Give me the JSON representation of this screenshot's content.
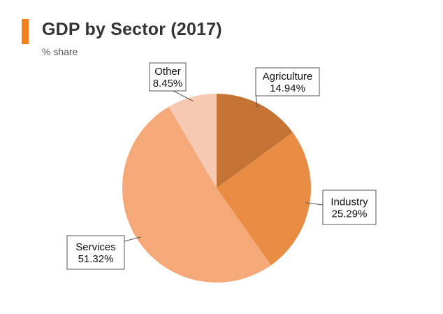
{
  "header": {
    "title": "GDP by Sector (2017)",
    "subtitle": "% share",
    "accent_color": "#f07f1c"
  },
  "chart_data": {
    "type": "pie",
    "title": "GDP by Sector (2017)",
    "subtitle": "% share",
    "slices": [
      {
        "name": "Agriculture",
        "value": 14.94,
        "label": "14.94%",
        "color": "#c47335"
      },
      {
        "name": "Industry",
        "value": 25.29,
        "label": "25.29%",
        "color": "#e88d43"
      },
      {
        "name": "Services",
        "value": 51.32,
        "label": "51.32%",
        "color": "#f6a978"
      },
      {
        "name": "Other",
        "value": 8.45,
        "label": "8.45%",
        "color": "#f8c9b2"
      }
    ],
    "start_angle": "12 o'clock",
    "direction": "clockwise"
  }
}
